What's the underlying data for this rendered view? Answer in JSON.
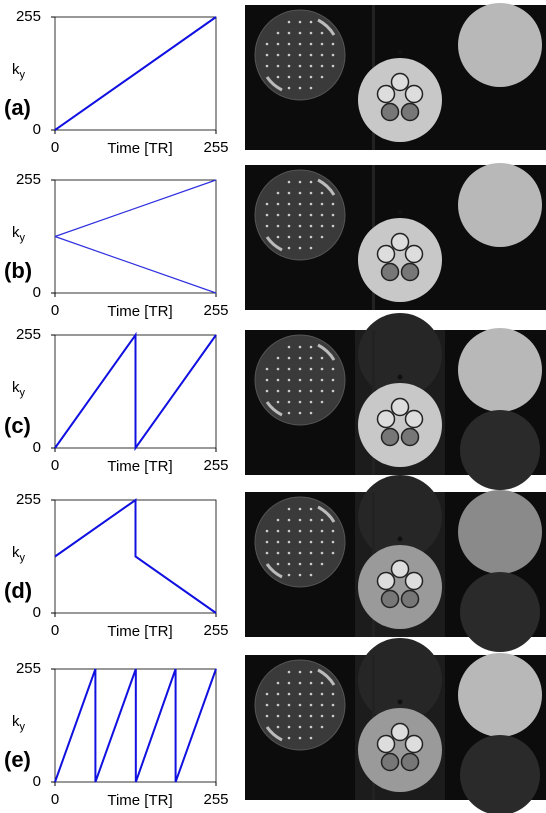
{
  "chart_data": [
    {
      "type": "line",
      "panel_label": "(a)",
      "ylabel": [
        "k",
        "y"
      ],
      "xlabel": "Time [TR]",
      "xlim": [
        0,
        255
      ],
      "xticks": [
        0,
        255
      ],
      "ylim": [
        0,
        255
      ],
      "yticks": [
        0,
        255
      ],
      "series": [
        {
          "color": "#1010e0",
          "x": [
            0,
            255
          ],
          "values": [
            0,
            255
          ]
        }
      ]
    },
    {
      "type": "line",
      "panel_label": "(b)",
      "ylabel": [
        "k",
        "y"
      ],
      "xlabel": "Time [TR]",
      "xlim": [
        0,
        255
      ],
      "xticks": [
        0,
        255
      ],
      "ylim": [
        0,
        255
      ],
      "yticks": [
        0,
        255
      ],
      "series": [
        {
          "color": "#3030e0",
          "x": [
            0,
            255
          ],
          "values": [
            127.5,
            255
          ]
        },
        {
          "color": "#3030e0",
          "x": [
            0,
            255
          ],
          "values": [
            127.5,
            0
          ]
        }
      ]
    },
    {
      "type": "line",
      "panel_label": "(c)",
      "ylabel": [
        "k",
        "y"
      ],
      "xlabel": "Time [TR]",
      "xlim": [
        0,
        255
      ],
      "xticks": [
        0,
        255
      ],
      "ylim": [
        0,
        255
      ],
      "yticks": [
        0,
        255
      ],
      "series": [
        {
          "color": "#1010e0",
          "x": [
            0,
            127.5,
            127.5,
            255
          ],
          "values": [
            0,
            255,
            0,
            255
          ]
        }
      ]
    },
    {
      "type": "line",
      "panel_label": "(d)",
      "ylabel": [
        "k",
        "y"
      ],
      "xlabel": "Time [TR]",
      "xlim": [
        0,
        255
      ],
      "xticks": [
        0,
        255
      ],
      "ylim": [
        0,
        255
      ],
      "yticks": [
        0,
        255
      ],
      "series": [
        {
          "color": "#1010e0",
          "x": [
            0,
            127.5,
            127.5,
            255
          ],
          "values": [
            127.5,
            255,
            127.5,
            0
          ]
        }
      ]
    },
    {
      "type": "line",
      "panel_label": "(e)",
      "ylabel": [
        "k",
        "y"
      ],
      "xlabel": "Time [TR]",
      "xlim": [
        0,
        255
      ],
      "xticks": [
        0,
        255
      ],
      "ylim": [
        0,
        255
      ],
      "yticks": [
        0,
        255
      ],
      "series": [
        {
          "color": "#1010e0",
          "x": [
            0,
            64,
            64,
            128,
            128,
            191,
            191,
            255
          ],
          "values": [
            0,
            255,
            0,
            255,
            0,
            255,
            0,
            255
          ]
        }
      ]
    }
  ]
}
